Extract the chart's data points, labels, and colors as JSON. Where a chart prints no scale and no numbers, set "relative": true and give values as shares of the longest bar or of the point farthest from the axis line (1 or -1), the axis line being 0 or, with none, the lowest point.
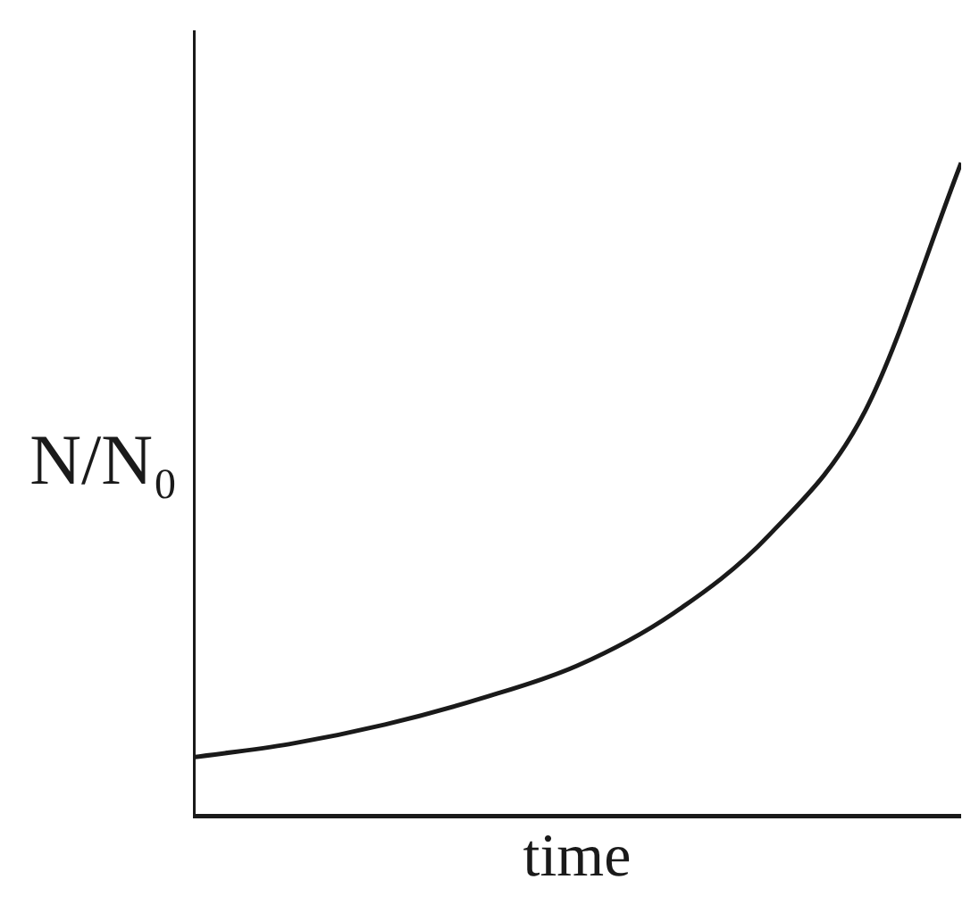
{
  "chart_data": {
    "type": "line",
    "relative": true,
    "xlabel": "time",
    "ylabel": "N/N₀",
    "categories": [
      null,
      null,
      null,
      null,
      null,
      null,
      null,
      null,
      null
    ],
    "series": [
      {
        "color": "#1a1a1a",
        "values": [
          0.09,
          0.11,
          0.14,
          0.18,
          0.23,
          0.31,
          0.43,
          0.62,
          1
        ]
      }
    ],
    "grid": false,
    "legend": false,
    "marker": "none",
    "line_style": "solid"
  }
}
